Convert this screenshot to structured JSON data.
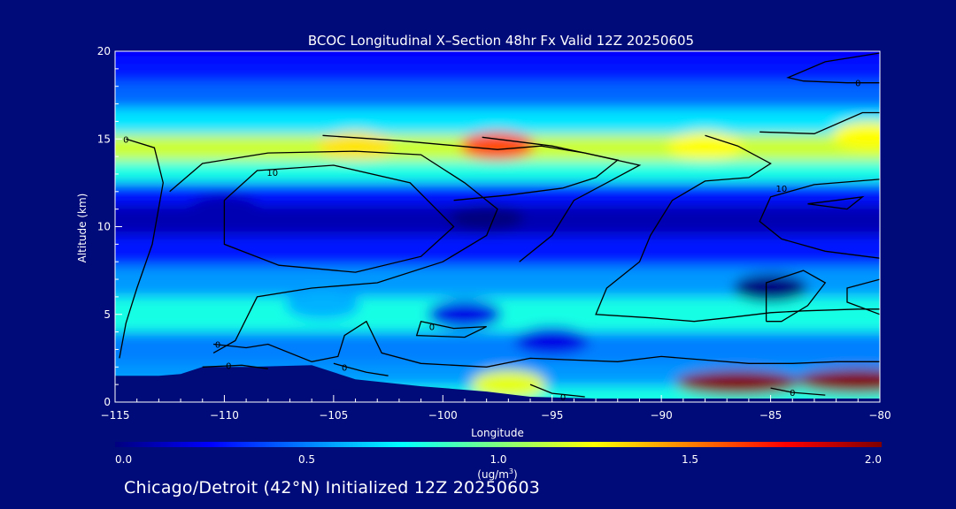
{
  "chart_data": {
    "type": "heatmap",
    "title": "BCOC Longitudinal X–Section 48hr  Fx Valid 12Z 20250605",
    "xlabel": "Longitude",
    "ylabel": "Altitude (km)",
    "xlim": [
      -115,
      -80
    ],
    "ylim": [
      0,
      20
    ],
    "x_ticks": [
      -115,
      -110,
      -105,
      -100,
      -95,
      -90,
      -85,
      -80
    ],
    "x_tick_labels": [
      "−115",
      "−110",
      "−105",
      "−100",
      "−95",
      "−90",
      "−85",
      "−80"
    ],
    "y_ticks": [
      0,
      5,
      10,
      15,
      20
    ],
    "y_tick_labels": [
      "0",
      "5",
      "10",
      "15",
      "20"
    ],
    "colorbar": {
      "min": 0.0,
      "max": 2.0,
      "ticks": [
        0.0,
        0.5,
        1.0,
        1.5,
        2.0
      ],
      "tick_labels": [
        "0.0",
        "0.5",
        "1.0",
        "1.5",
        "2.0"
      ],
      "unit_label": "(ug/m",
      "unit_sup": "3",
      "unit_close": ")",
      "colors": [
        "#00007f",
        "#0000ff",
        "#007fff",
        "#00ffff",
        "#7fff7f",
        "#ffff00",
        "#ff7f00",
        "#ff0000",
        "#7f0000"
      ]
    },
    "bands": [
      {
        "altitude_km": 0.3,
        "value": 0.8
      },
      {
        "altitude_km": 1.5,
        "value": 0.55
      },
      {
        "altitude_km": 3.0,
        "value": 0.5
      },
      {
        "altitude_km": 5.0,
        "value": 0.8
      },
      {
        "altitude_km": 7.0,
        "value": 0.55
      },
      {
        "altitude_km": 8.5,
        "value": 0.3
      },
      {
        "altitude_km": 10.5,
        "value": 0.1
      },
      {
        "altitude_km": 12.0,
        "value": 0.3
      },
      {
        "altitude_km": 13.0,
        "value": 0.8
      },
      {
        "altitude_km": 14.5,
        "value": 1.15
      },
      {
        "altitude_km": 16.0,
        "value": 0.7
      },
      {
        "altitude_km": 17.5,
        "value": 0.45
      },
      {
        "altitude_km": 19.0,
        "value": 0.3
      },
      {
        "altitude_km": 20.0,
        "value": 0.25
      }
    ],
    "hotspots": [
      {
        "lon": -97.5,
        "alt_km": 14.6,
        "value": 1.6
      },
      {
        "lon": -104,
        "alt_km": 14.6,
        "value": 1.3
      },
      {
        "lon": -88,
        "alt_km": 14.6,
        "value": 1.25
      },
      {
        "lon": -80.5,
        "alt_km": 15.2,
        "value": 1.25
      },
      {
        "lon": -98,
        "alt_km": 10.5,
        "value": 0.0
      },
      {
        "lon": -110,
        "alt_km": 11.0,
        "value": 0.1
      },
      {
        "lon": -85,
        "alt_km": 6.5,
        "value": 0.0
      },
      {
        "lon": -95,
        "alt_km": 3.5,
        "value": 0.2
      },
      {
        "lon": -105.5,
        "alt_km": 5.5,
        "value": 0.6
      },
      {
        "lon": -99,
        "alt_km": 5.0,
        "value": 0.2
      },
      {
        "lon": -97,
        "alt_km": 1.0,
        "value": 1.2
      },
      {
        "lon": -86.5,
        "alt_km": 1.1,
        "value": 2.0
      },
      {
        "lon": -81,
        "alt_km": 1.2,
        "value": 2.0
      }
    ],
    "terrain_km": [
      {
        "lon": -115,
        "alt": 1.5
      },
      {
        "lon": -113,
        "alt": 1.5
      },
      {
        "lon": -112,
        "alt": 1.6
      },
      {
        "lon": -111,
        "alt": 2.0
      },
      {
        "lon": -109,
        "alt": 2.0
      },
      {
        "lon": -106,
        "alt": 2.1
      },
      {
        "lon": -104,
        "alt": 1.3
      },
      {
        "lon": -101,
        "alt": 0.9
      },
      {
        "lon": -98,
        "alt": 0.6
      },
      {
        "lon": -96,
        "alt": 0.3
      },
      {
        "lon": -93,
        "alt": 0.2
      },
      {
        "lon": -88,
        "alt": 0.2
      },
      {
        "lon": -83,
        "alt": 0.2
      },
      {
        "lon": -80,
        "alt": 0.2
      }
    ],
    "contours": [
      {
        "label": "0",
        "label_lon": -114.5,
        "label_alt": 15.0,
        "points": [
          [
            -114.5,
            15
          ],
          [
            -113.2,
            14.5
          ],
          [
            -112.8,
            12.5
          ],
          [
            -113.3,
            9
          ],
          [
            -114,
            6.5
          ],
          [
            -114.5,
            4.5
          ],
          [
            -114.8,
            2.5
          ]
        ]
      },
      {
        "label": "10",
        "label_lon": -107.8,
        "label_alt": 13.1,
        "points": [
          [
            -110,
            11.5
          ],
          [
            -108.5,
            13.2
          ],
          [
            -105,
            13.5
          ],
          [
            -101.5,
            12.5
          ],
          [
            -99.5,
            10
          ],
          [
            -101,
            8.3
          ],
          [
            -104,
            7.4
          ],
          [
            -107.5,
            7.8
          ],
          [
            -110,
            9
          ],
          [
            -110,
            11.5
          ]
        ]
      },
      {
        "label": "",
        "label_lon": 0,
        "label_alt": 0,
        "points": [
          [
            -112.5,
            12
          ],
          [
            -111,
            13.6
          ],
          [
            -108,
            14.2
          ],
          [
            -104,
            14.3
          ],
          [
            -101,
            14.1
          ],
          [
            -99,
            12.5
          ],
          [
            -97.5,
            11
          ],
          [
            -98,
            9.5
          ],
          [
            -100,
            8
          ],
          [
            -103,
            6.8
          ],
          [
            -106,
            6.5
          ],
          [
            -108.5,
            6
          ],
          [
            -109.5,
            3.5
          ],
          [
            -110.5,
            2.8
          ]
        ]
      },
      {
        "label": "",
        "label_lon": 0,
        "label_alt": 0,
        "points": [
          [
            -105.5,
            15.2
          ],
          [
            -102,
            14.9
          ],
          [
            -97.5,
            14.4
          ],
          [
            -95.5,
            14.6
          ],
          [
            -93.5,
            14.2
          ],
          [
            -91,
            13.5
          ],
          [
            -92.5,
            12.5
          ],
          [
            -94,
            11.5
          ],
          [
            -95,
            9.5
          ],
          [
            -96.5,
            8
          ]
        ]
      },
      {
        "label": "",
        "label_lon": 0,
        "label_alt": 0,
        "points": [
          [
            -99.5,
            11.5
          ],
          [
            -97,
            11.8
          ],
          [
            -94.5,
            12.2
          ],
          [
            -93,
            12.8
          ],
          [
            -92,
            13.8
          ],
          [
            -95,
            14.6
          ],
          [
            -98.2,
            15.1
          ]
        ]
      },
      {
        "label": "10",
        "label_lon": -84.5,
        "label_alt": 12.2,
        "points": [
          [
            -80,
            12.7
          ],
          [
            -83,
            12.4
          ],
          [
            -85,
            11.7
          ],
          [
            -85.5,
            10.3
          ],
          [
            -84.5,
            9.3
          ],
          [
            -82.5,
            8.6
          ],
          [
            -80,
            8.2
          ]
        ]
      },
      {
        "label": "",
        "label_lon": 0,
        "label_alt": 0,
        "points": [
          [
            -85.5,
            15.4
          ],
          [
            -83,
            15.3
          ],
          [
            -80.8,
            16.5
          ],
          [
            -80,
            16.5
          ]
        ]
      },
      {
        "label": "",
        "label_lon": 0,
        "label_alt": 0,
        "points": [
          [
            -83.3,
            11.3
          ],
          [
            -82,
            11.5
          ],
          [
            -80.8,
            11.7
          ],
          [
            -81.5,
            11
          ],
          [
            -83.3,
            11.3
          ]
        ]
      },
      {
        "label": "0",
        "label_lon": -81,
        "label_alt": 18.2,
        "points": [
          [
            -80,
            18.2
          ],
          [
            -81.5,
            18.2
          ],
          [
            -83.5,
            18.3
          ],
          [
            -84.2,
            18.5
          ],
          [
            -82.5,
            19.4
          ],
          [
            -80,
            19.9
          ]
        ]
      },
      {
        "label": "",
        "label_lon": 0,
        "label_alt": 0,
        "points": [
          [
            -88,
            15.2
          ],
          [
            -86.5,
            14.6
          ],
          [
            -85,
            13.6
          ],
          [
            -86,
            12.8
          ],
          [
            -88,
            12.6
          ],
          [
            -89.5,
            11.5
          ],
          [
            -90.5,
            9.5
          ],
          [
            -91,
            8
          ],
          [
            -92.5,
            6.5
          ],
          [
            -93,
            5.0
          ],
          [
            -90.5,
            4.8
          ],
          [
            -88.5,
            4.6
          ],
          [
            -87,
            4.8
          ],
          [
            -85,
            5.1
          ],
          [
            -83.5,
            5.2
          ],
          [
            -81,
            5.3
          ],
          [
            -80,
            5.3
          ]
        ]
      },
      {
        "label": "",
        "label_lon": 0,
        "label_alt": 0,
        "points": [
          [
            -80,
            7.0
          ],
          [
            -81.5,
            6.5
          ],
          [
            -81.5,
            5.7
          ],
          [
            -80,
            5.0
          ]
        ]
      },
      {
        "label": "",
        "label_lon": 0,
        "label_alt": 0,
        "points": [
          [
            -85.2,
            4.6
          ],
          [
            -85.2,
            6.8
          ],
          [
            -83.5,
            7.5
          ],
          [
            -82.5,
            6.8
          ],
          [
            -83.3,
            5.5
          ],
          [
            -84.5,
            4.6
          ],
          [
            -85.2,
            4.6
          ]
        ]
      },
      {
        "label": "0",
        "label_lon": -100.5,
        "label_alt": 4.3,
        "points": [
          [
            -98,
            4.3
          ],
          [
            -99.5,
            4.2
          ],
          [
            -101,
            4.6
          ],
          [
            -101.2,
            3.8
          ],
          [
            -99,
            3.7
          ],
          [
            -98,
            4.3
          ]
        ]
      },
      {
        "label": "0",
        "label_lon": -110.3,
        "label_alt": 3.3,
        "points": [
          [
            -110.5,
            3.3
          ],
          [
            -109,
            3.1
          ],
          [
            -108,
            3.3
          ],
          [
            -106,
            2.3
          ],
          [
            -104.8,
            2.6
          ],
          [
            -104.5,
            3.8
          ],
          [
            -103.5,
            4.6
          ],
          [
            -102.8,
            2.8
          ],
          [
            -101,
            2.2
          ],
          [
            -98,
            2.0
          ],
          [
            -96,
            2.5
          ],
          [
            -94,
            2.4
          ],
          [
            -92,
            2.3
          ],
          [
            -90,
            2.6
          ],
          [
            -88,
            2.4
          ],
          [
            -86,
            2.2
          ],
          [
            -84,
            2.2
          ],
          [
            -82,
            2.3
          ],
          [
            -80,
            2.3
          ]
        ]
      },
      {
        "label": "0",
        "label_lon": -109.8,
        "label_alt": 2.1,
        "points": [
          [
            -111,
            2.0
          ],
          [
            -109.2,
            2.1
          ],
          [
            -108,
            1.9
          ]
        ]
      },
      {
        "label": "0",
        "label_lon": -104.5,
        "label_alt": 2.0,
        "points": [
          [
            -105,
            2.2
          ],
          [
            -103.5,
            1.7
          ],
          [
            -102.5,
            1.5
          ]
        ]
      },
      {
        "label": "0",
        "label_lon": -94.5,
        "label_alt": 0.3,
        "points": [
          [
            -96,
            1.0
          ],
          [
            -95,
            0.5
          ],
          [
            -93.5,
            0.3
          ]
        ]
      },
      {
        "label": "0",
        "label_lon": -84,
        "label_alt": 0.55,
        "points": [
          [
            -85,
            0.8
          ],
          [
            -84,
            0.55
          ],
          [
            -82.5,
            0.4
          ]
        ]
      }
    ]
  },
  "footer_text": "Chicago/Detroit (42°N) Initialized 12Z 20250603"
}
